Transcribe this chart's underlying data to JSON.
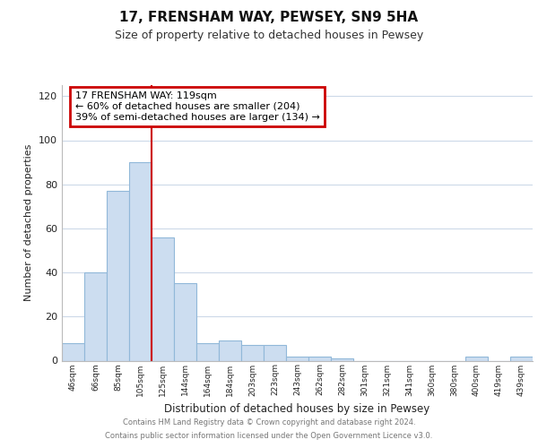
{
  "title": "17, FRENSHAM WAY, PEWSEY, SN9 5HA",
  "subtitle": "Size of property relative to detached houses in Pewsey",
  "xlabel": "Distribution of detached houses by size in Pewsey",
  "ylabel": "Number of detached properties",
  "bar_labels": [
    "46sqm",
    "66sqm",
    "85sqm",
    "105sqm",
    "125sqm",
    "144sqm",
    "164sqm",
    "184sqm",
    "203sqm",
    "223sqm",
    "243sqm",
    "262sqm",
    "282sqm",
    "301sqm",
    "321sqm",
    "341sqm",
    "360sqm",
    "380sqm",
    "400sqm",
    "419sqm",
    "439sqm"
  ],
  "bar_values": [
    8,
    40,
    77,
    90,
    56,
    35,
    8,
    9,
    7,
    7,
    2,
    2,
    1,
    0,
    0,
    0,
    0,
    0,
    2,
    0,
    2
  ],
  "bar_color": "#ccddf0",
  "bar_edge_color": "#91b8d9",
  "vline_x_index": 4,
  "vline_color": "#cc0000",
  "annotation_box_color": "#cc0000",
  "annotation_lines": [
    "17 FRENSHAM WAY: 119sqm",
    "← 60% of detached houses are smaller (204)",
    "39% of semi-detached houses are larger (134) →"
  ],
  "ylim": [
    0,
    125
  ],
  "yticks": [
    0,
    20,
    40,
    60,
    80,
    100,
    120
  ],
  "footer_line1": "Contains HM Land Registry data © Crown copyright and database right 2024.",
  "footer_line2": "Contains public sector information licensed under the Open Government Licence v3.0.",
  "background_color": "#ffffff",
  "grid_color": "#ccd9e8"
}
